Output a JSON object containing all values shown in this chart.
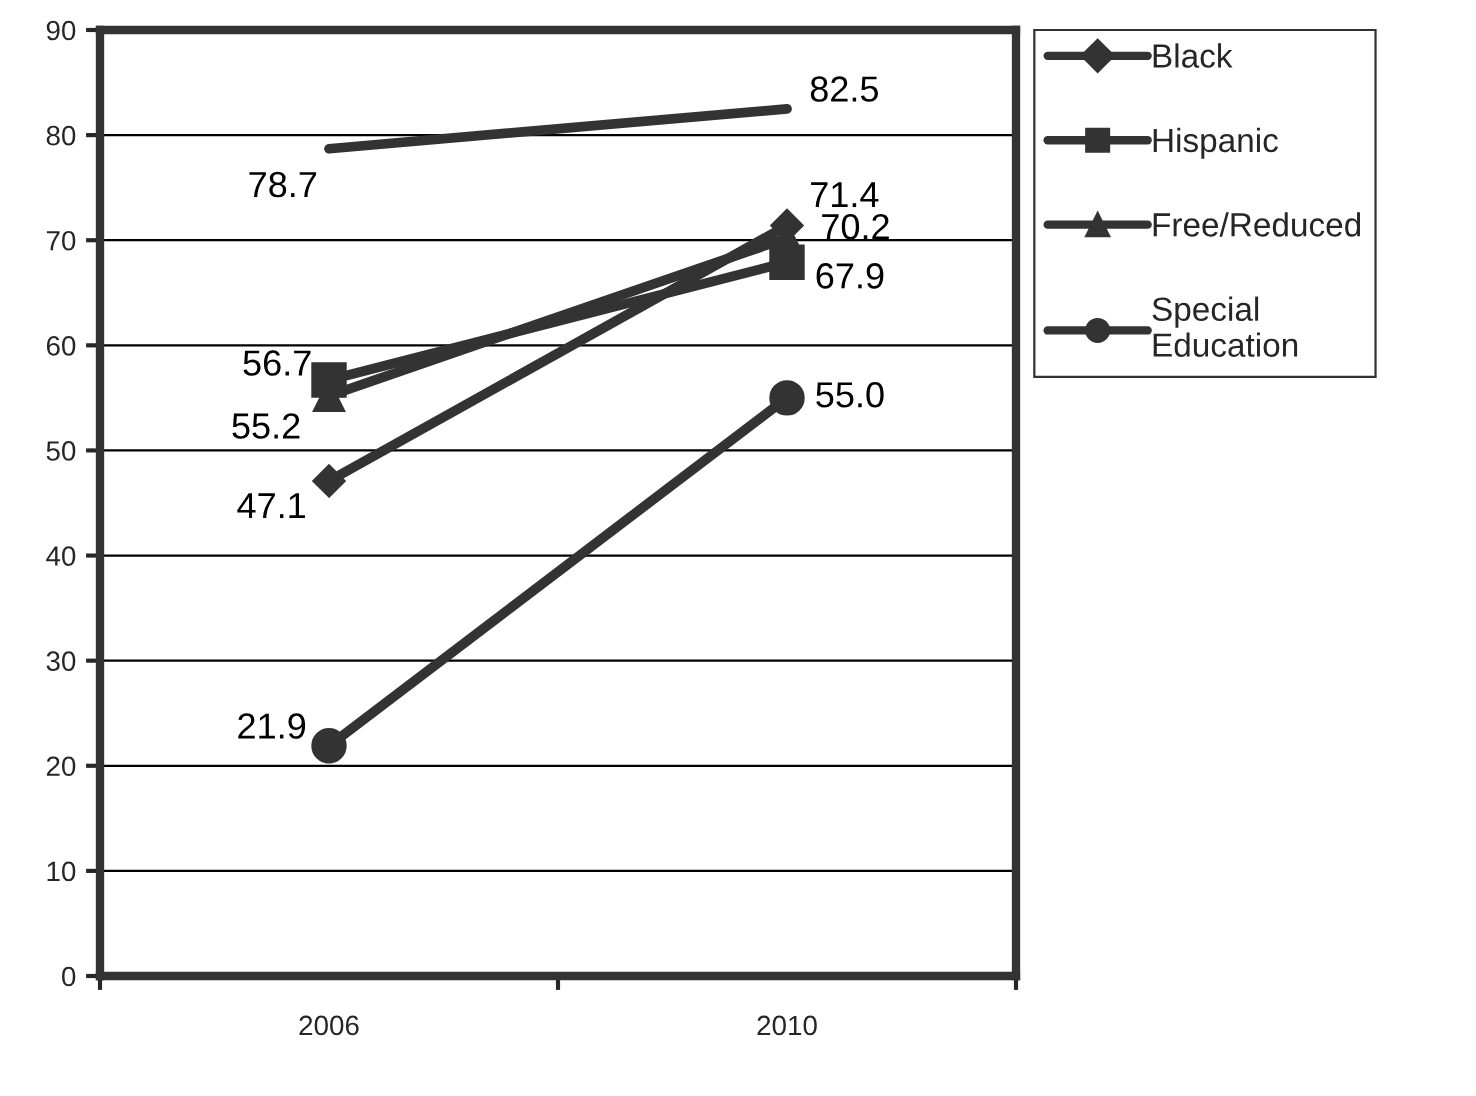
{
  "chart_data": {
    "type": "line",
    "categories": [
      "2006",
      "2010"
    ],
    "ylim": [
      0,
      90
    ],
    "yticks": [
      0,
      10,
      20,
      30,
      40,
      50,
      60,
      70,
      80,
      90
    ],
    "grid": "y",
    "legend": "right",
    "line_style": "solid",
    "series": [
      {
        "name": "Black",
        "color": "#333333",
        "marker": "diamond",
        "values": [
          47.1,
          71.4
        ],
        "value_labels": [
          "47.1",
          "71.4"
        ]
      },
      {
        "name": "Hispanic",
        "color": "#333333",
        "marker": "square",
        "values": [
          56.7,
          67.9
        ],
        "value_labels": [
          "56.7",
          "67.9"
        ]
      },
      {
        "name": "Free/Reduced",
        "color": "#333333",
        "marker": "triangle",
        "values": [
          55.2,
          70.2
        ],
        "value_labels": [
          "55.2",
          "70.2"
        ]
      },
      {
        "name": "Special\nEducation",
        "color": "#333333",
        "marker": "circle",
        "values": [
          21.9,
          55.0
        ],
        "value_labels": [
          "21.9",
          "55.0"
        ]
      },
      {
        "color": "#333333",
        "marker": "none",
        "values": [
          78.7,
          82.5
        ],
        "value_labels": [
          "78.7",
          "82.5"
        ]
      }
    ]
  }
}
